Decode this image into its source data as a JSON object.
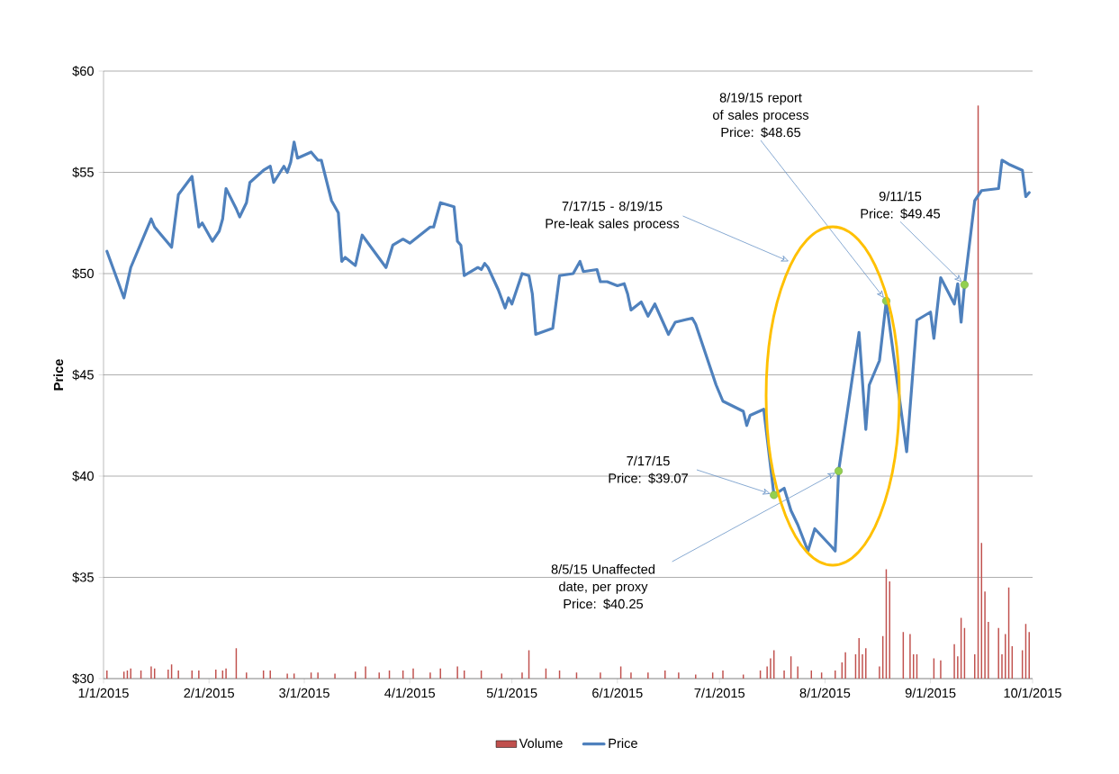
{
  "chart_data": {
    "type": "line",
    "ylabel": "Price",
    "xlim": [
      "2015-01-01",
      "2015-10-01"
    ],
    "xticks": [
      {
        "value": "2015-01-01",
        "label": "1/1/2015"
      },
      {
        "value": "2015-02-01",
        "label": "2/1/2015"
      },
      {
        "value": "2015-03-01",
        "label": "3/1/2015"
      },
      {
        "value": "2015-04-01",
        "label": "4/1/2015"
      },
      {
        "value": "2015-05-01",
        "label": "5/1/2015"
      },
      {
        "value": "2015-06-01",
        "label": "6/1/2015"
      },
      {
        "value": "2015-07-01",
        "label": "7/1/2015"
      },
      {
        "value": "2015-08-01",
        "label": "8/1/2015"
      },
      {
        "value": "2015-09-01",
        "label": "9/1/2015"
      },
      {
        "value": "2015-10-01",
        "label": "10/1/2015"
      }
    ],
    "ylim": [
      30,
      60
    ],
    "yticks": [
      {
        "value": 30,
        "label": "$30"
      },
      {
        "value": 35,
        "label": "$35"
      },
      {
        "value": 40,
        "label": "$40"
      },
      {
        "value": 45,
        "label": "$45"
      },
      {
        "value": 50,
        "label": "$50"
      },
      {
        "value": 55,
        "label": "$55"
      },
      {
        "value": 60,
        "label": "$60"
      }
    ],
    "grid": "y",
    "legend": "bottom",
    "series": [
      {
        "name": "Volume",
        "type": "bar",
        "color": "#c0504d",
        "x": [
          "2015-01-02",
          "2015-01-07",
          "2015-01-08",
          "2015-01-09",
          "2015-01-12",
          "2015-01-15",
          "2015-01-16",
          "2015-01-20",
          "2015-01-21",
          "2015-01-23",
          "2015-01-27",
          "2015-01-29",
          "2015-02-03",
          "2015-02-05",
          "2015-02-06",
          "2015-02-09",
          "2015-02-12",
          "2015-02-17",
          "2015-02-19",
          "2015-02-24",
          "2015-02-26",
          "2015-03-03",
          "2015-03-05",
          "2015-03-10",
          "2015-03-16",
          "2015-03-19",
          "2015-03-23",
          "2015-03-26",
          "2015-03-30",
          "2015-04-02",
          "2015-04-07",
          "2015-04-10",
          "2015-04-15",
          "2015-04-17",
          "2015-04-22",
          "2015-04-28",
          "2015-05-04",
          "2015-05-06",
          "2015-05-11",
          "2015-05-15",
          "2015-05-20",
          "2015-05-27",
          "2015-06-02",
          "2015-06-05",
          "2015-06-10",
          "2015-06-15",
          "2015-06-19",
          "2015-06-24",
          "2015-06-29",
          "2015-07-02",
          "2015-07-08",
          "2015-07-13",
          "2015-07-15",
          "2015-07-16",
          "2015-07-17",
          "2015-07-20",
          "2015-07-22",
          "2015-07-24",
          "2015-07-28",
          "2015-07-31",
          "2015-08-04",
          "2015-08-06",
          "2015-08-07",
          "2015-08-10",
          "2015-08-11",
          "2015-08-12",
          "2015-08-13",
          "2015-08-17",
          "2015-08-18",
          "2015-08-19",
          "2015-08-20",
          "2015-08-24",
          "2015-08-26",
          "2015-08-27",
          "2015-08-28",
          "2015-09-02",
          "2015-09-04",
          "2015-09-08",
          "2015-09-09",
          "2015-09-10",
          "2015-09-11",
          "2015-09-14",
          "2015-09-15",
          "2015-09-16",
          "2015-09-17",
          "2015-09-18",
          "2015-09-21",
          "2015-09-22",
          "2015-09-23",
          "2015-09-24",
          "2015-09-25",
          "2015-09-28",
          "2015-09-29",
          "2015-09-30"
        ],
        "values": [
          30.4,
          30.35,
          30.4,
          30.5,
          30.4,
          30.6,
          30.5,
          30.45,
          30.7,
          30.4,
          30.4,
          30.4,
          30.45,
          30.4,
          30.5,
          31.5,
          30.3,
          30.4,
          30.4,
          30.25,
          30.25,
          30.3,
          30.3,
          30.25,
          30.35,
          30.6,
          30.3,
          30.4,
          30.4,
          30.5,
          30.3,
          30.5,
          30.6,
          30.4,
          30.4,
          30.25,
          30.3,
          31.4,
          30.5,
          30.4,
          30.3,
          30.3,
          30.6,
          30.3,
          30.3,
          30.4,
          30.3,
          30.2,
          30.3,
          30.4,
          30.2,
          30.4,
          30.6,
          31.0,
          31.4,
          30.4,
          31.1,
          30.6,
          30.4,
          30.3,
          30.4,
          30.8,
          31.3,
          31.2,
          32.0,
          31.2,
          31.5,
          30.6,
          32.1,
          35.4,
          34.8,
          32.3,
          32.2,
          31.2,
          31.2,
          31.0,
          30.9,
          31.7,
          31.1,
          33.0,
          32.5,
          31.2,
          58.3,
          36.7,
          34.3,
          32.8,
          32.5,
          31.2,
          32.2,
          34.5,
          31.6,
          31.4,
          32.7,
          32.3
        ]
      },
      {
        "name": "Price",
        "type": "line",
        "color": "#4f81bd",
        "marker": "none",
        "line_style": "solid",
        "x": [
          "2015-01-02",
          "2015-01-07",
          "2015-01-09",
          "2015-01-15",
          "2015-01-16",
          "2015-01-21",
          "2015-01-23",
          "2015-01-27",
          "2015-01-29",
          "2015-01-30",
          "2015-02-02",
          "2015-02-04",
          "2015-02-05",
          "2015-02-06",
          "2015-02-09",
          "2015-02-10",
          "2015-02-12",
          "2015-02-13",
          "2015-02-17",
          "2015-02-19",
          "2015-02-20",
          "2015-02-23",
          "2015-02-24",
          "2015-02-25",
          "2015-02-26",
          "2015-02-27",
          "2015-03-03",
          "2015-03-05",
          "2015-03-06",
          "2015-03-09",
          "2015-03-11",
          "2015-03-12",
          "2015-03-13",
          "2015-03-16",
          "2015-03-18",
          "2015-03-25",
          "2015-03-27",
          "2015-03-30",
          "2015-04-01",
          "2015-04-07",
          "2015-04-08",
          "2015-04-10",
          "2015-04-14",
          "2015-04-15",
          "2015-04-16",
          "2015-04-17",
          "2015-04-21",
          "2015-04-22",
          "2015-04-23",
          "2015-04-24",
          "2015-04-27",
          "2015-04-29",
          "2015-04-30",
          "2015-05-01",
          "2015-05-04",
          "2015-05-06",
          "2015-05-07",
          "2015-05-08",
          "2015-05-13",
          "2015-05-15",
          "2015-05-19",
          "2015-05-21",
          "2015-05-22",
          "2015-05-26",
          "2015-05-27",
          "2015-05-29",
          "2015-06-01",
          "2015-06-03",
          "2015-06-04",
          "2015-06-05",
          "2015-06-08",
          "2015-06-10",
          "2015-06-12",
          "2015-06-16",
          "2015-06-18",
          "2015-06-23",
          "2015-06-24",
          "2015-06-30",
          "2015-07-02",
          "2015-07-08",
          "2015-07-09",
          "2015-07-10",
          "2015-07-14",
          "2015-07-17",
          "2015-07-20",
          "2015-07-22",
          "2015-07-24",
          "2015-07-27",
          "2015-07-29",
          "2015-08-03",
          "2015-08-04",
          "2015-08-05",
          "2015-08-11",
          "2015-08-13",
          "2015-08-14",
          "2015-08-17",
          "2015-08-19",
          "2015-08-25",
          "2015-08-28",
          "2015-09-01",
          "2015-09-02",
          "2015-09-04",
          "2015-09-08",
          "2015-09-09",
          "2015-09-10",
          "2015-09-11",
          "2015-09-14",
          "2015-09-16",
          "2015-09-21",
          "2015-09-22",
          "2015-09-24",
          "2015-09-28",
          "2015-09-29",
          "2015-09-30"
        ],
        "values": [
          51.1,
          48.8,
          50.3,
          52.7,
          52.3,
          51.3,
          53.9,
          54.8,
          52.3,
          52.5,
          51.6,
          52.1,
          52.7,
          54.2,
          53.2,
          52.8,
          53.5,
          54.5,
          55.1,
          55.3,
          54.5,
          55.3,
          55.0,
          55.5,
          56.5,
          55.7,
          56.0,
          55.6,
          55.6,
          53.6,
          53.0,
          50.6,
          50.8,
          50.4,
          51.9,
          50.3,
          51.4,
          51.7,
          51.5,
          52.3,
          52.3,
          53.5,
          53.3,
          51.6,
          51.4,
          49.9,
          50.3,
          50.2,
          50.5,
          50.3,
          49.2,
          48.3,
          48.8,
          48.5,
          50.0,
          49.9,
          49.0,
          47.0,
          47.3,
          49.9,
          50.0,
          50.6,
          50.1,
          50.2,
          49.6,
          49.6,
          49.4,
          49.5,
          49.0,
          48.2,
          48.6,
          47.9,
          48.5,
          47.0,
          47.6,
          47.8,
          47.5,
          44.5,
          43.7,
          43.2,
          42.5,
          43.0,
          43.3,
          39.07,
          39.4,
          38.3,
          37.6,
          36.3,
          37.4,
          36.5,
          36.3,
          40.25,
          47.1,
          42.3,
          44.5,
          45.7,
          48.65,
          41.2,
          47.7,
          48.1,
          46.8,
          49.8,
          48.5,
          49.5,
          47.6,
          49.45,
          53.6,
          54.1,
          54.2,
          55.6,
          55.4,
          55.1,
          53.8,
          54.0
        ]
      },
      {
        "type": "scatter",
        "color": "#92d050",
        "marker": "circle",
        "x": [
          "2015-07-17",
          "2015-08-05",
          "2015-08-19",
          "2015-09-11"
        ],
        "values": [
          39.07,
          40.25,
          48.65,
          49.45
        ]
      }
    ],
    "annotations": [
      "7/17/15 Price: $39.07",
      "8/5/15 Unaffected date, per proxy Price: $40.25",
      "8/19/15 report of sales process Price: $48.65",
      "9/11/15 Price: $49.45",
      "7/17/15 - 8/19/15 Pre-leak sales process"
    ]
  }
}
